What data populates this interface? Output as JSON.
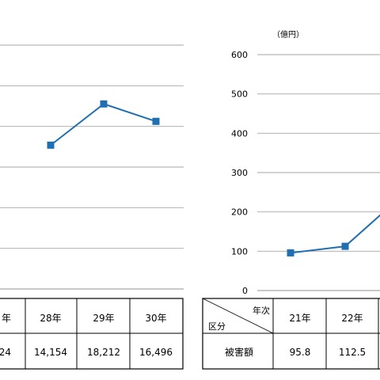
{
  "chart_data": [
    {
      "type": "line",
      "title": "",
      "xlabel": "",
      "ylabel": "",
      "categories": [
        "",
        "28年",
        "29年",
        "30年"
      ],
      "series": [
        {
          "values": [
            null,
            14154,
            18212,
            16496
          ],
          "color": "#1f6fb2"
        }
      ],
      "ylim": [
        0,
        24000
      ],
      "grid": true,
      "table": {
        "headers": [
          "年",
          "28年",
          "29年",
          "30年"
        ],
        "values": [
          "24",
          "14,154",
          "18,212",
          "16,496"
        ]
      }
    },
    {
      "type": "line",
      "title": "",
      "xlabel": "",
      "ylabel": "（億円）",
      "yticks": [
        "0",
        "100",
        "200",
        "300",
        "400",
        "500",
        "600"
      ],
      "ylim": [
        0,
        600
      ],
      "categories": [
        "21年",
        "22年"
      ],
      "series": [
        {
          "values": [
            95.8,
            112.5
          ],
          "color": "#1f6fb2"
        }
      ],
      "grid": true,
      "table": {
        "header_top": "年次",
        "header_bottom": "区分",
        "row_label": "被害額",
        "headers": [
          "21年",
          "22年"
        ],
        "values": [
          "95.8",
          "112.5"
        ]
      }
    }
  ]
}
